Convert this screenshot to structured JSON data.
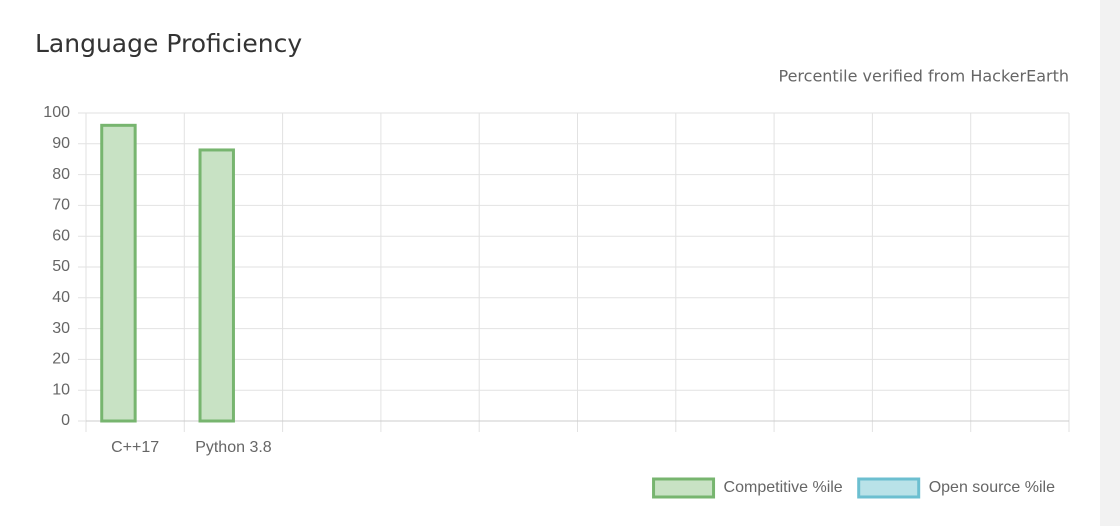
{
  "chart_data": {
    "type": "bar",
    "title": "Language Proficiency",
    "subtitle": "Percentile verified from HackerEarth",
    "categories": [
      "C++17",
      "Python 3.8",
      null,
      null,
      null,
      null,
      null,
      null,
      null,
      null
    ],
    "series": [
      {
        "name": "Competitive %ile",
        "color": "#77b56f",
        "fill": "#c8e2c4",
        "values": [
          96,
          88,
          null,
          null,
          null,
          null,
          null,
          null,
          null,
          null
        ]
      },
      {
        "name": "Open source %ile",
        "color": "#6cbfd0",
        "fill": "#b9e2e8",
        "values": [
          null,
          null,
          null,
          null,
          null,
          null,
          null,
          null,
          null,
          null
        ]
      }
    ],
    "ylim": [
      0,
      100
    ],
    "yticks": [
      0,
      10,
      20,
      30,
      40,
      50,
      60,
      70,
      80,
      90,
      100
    ],
    "grid": true,
    "legend": "bottom-right"
  }
}
